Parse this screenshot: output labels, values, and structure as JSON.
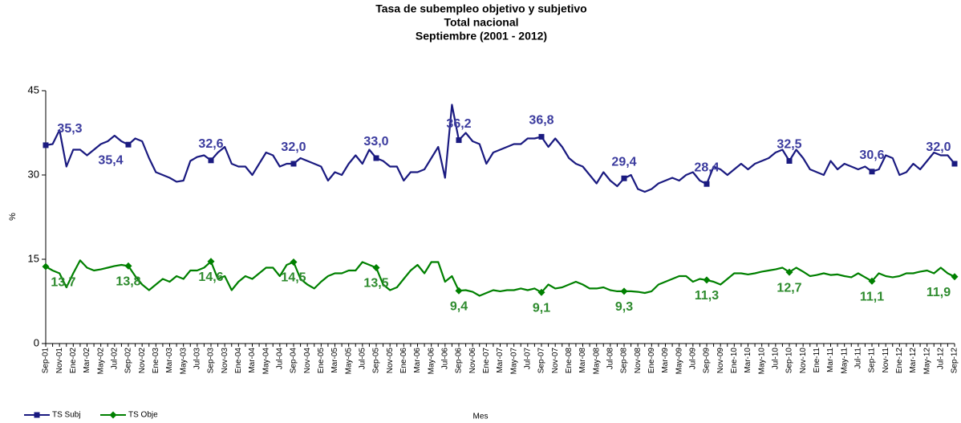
{
  "chart_data": {
    "type": "line",
    "title": "Tasa de subempleo objetivo y subjetivo",
    "subtitle": [
      "Total nacional",
      "Septiembre (2001 - 2012)"
    ],
    "x_label": "Mes",
    "y_label": "%",
    "categories": [
      "Sep-01",
      null,
      "Nov-01",
      null,
      "Ene-02",
      null,
      "Mar-02",
      null,
      "May-02",
      null,
      "Jul-02",
      null,
      "Sep-02",
      null,
      "Nov-02",
      null,
      "Ene-03",
      null,
      "Mar-03",
      null,
      "May-03",
      null,
      "Jul-03",
      null,
      "Sep-03",
      null,
      "Nov-03",
      null,
      "Ene-04",
      null,
      "Mar-04",
      null,
      "May-04",
      null,
      "Jul-04",
      null,
      "Sep-04",
      null,
      "Nov-04",
      null,
      "Ene-05",
      null,
      "Mar-05",
      null,
      "May-05",
      null,
      "Jul-05",
      null,
      "Sep-05",
      null,
      "Nov-05",
      null,
      "Ene-06",
      null,
      "Mar-06",
      null,
      "May-06",
      null,
      "Jul-06",
      null,
      "Sep-06",
      null,
      "Nov-06",
      null,
      "Ene-07",
      null,
      "Mar-07",
      null,
      "May-07",
      null,
      "Jul-07",
      null,
      "Sep-07",
      null,
      "Nov-07",
      null,
      "Ene-08",
      null,
      "Mar-08",
      null,
      "May-08",
      null,
      "Jul-08",
      null,
      "Sep-08",
      null,
      "Nov-08",
      null,
      "Ene-09",
      null,
      "Mar-09",
      null,
      "May-09",
      null,
      "Jul-09",
      null,
      "Sep-09",
      null,
      "Nov-09",
      null,
      "Ene-10",
      null,
      "Mar-10",
      null,
      "May-10",
      null,
      "Jul-10",
      null,
      "Sep-10",
      null,
      "Nov-10",
      null,
      "Ene-11",
      null,
      "Mar-11",
      null,
      "May-11",
      null,
      "Jul-11",
      null,
      "Sep-11",
      null,
      "Nov-11",
      null,
      "Ene-12",
      null,
      "Mar-12",
      null,
      "May-12",
      null,
      "Jul-12",
      null,
      "Sep-12"
    ],
    "series": [
      {
        "name": "TS Subj",
        "color": "#1a1a80",
        "label_color": "#3b3b9e",
        "marker": "square",
        "values": [
          35.3,
          35.5,
          38,
          31.5,
          34.5,
          34.5,
          33.5,
          34.5,
          35.5,
          36,
          37,
          36,
          35.4,
          36.5,
          36,
          33,
          30.5,
          30,
          29.5,
          28.8,
          29,
          32.5,
          33.2,
          33.5,
          32.6,
          34,
          35,
          32,
          31.5,
          31.5,
          30,
          32,
          34,
          33.5,
          31.5,
          32,
          32.0,
          33,
          32.5,
          32,
          31.5,
          29,
          30.5,
          30,
          32,
          33.5,
          32,
          34.5,
          33.0,
          32.5,
          31.5,
          31.5,
          29,
          30.5,
          30.5,
          31,
          33,
          35,
          29.5,
          42.5,
          36.2,
          37.5,
          36,
          35.5,
          32,
          34,
          34.5,
          35,
          35.5,
          35.5,
          36.5,
          36.5,
          36.8,
          35,
          36.5,
          35,
          33,
          32,
          31.5,
          30,
          28.5,
          30.5,
          29,
          28,
          29.4,
          30,
          27.5,
          27,
          27.5,
          28.5,
          29,
          29.5,
          29,
          30,
          30.5,
          29,
          28.4,
          31.5,
          31,
          30,
          31,
          32,
          31,
          32,
          32.5,
          33,
          34,
          34.5,
          32.5,
          34.5,
          33,
          31,
          30.5,
          30,
          32.5,
          31,
          32,
          31.5,
          31,
          31.5,
          30.6,
          31,
          33.5,
          33,
          30,
          30.5,
          32,
          31,
          32.5,
          34,
          33.5,
          33.5,
          32.0
        ],
        "value_labels": [
          "35,3",
          null,
          null,
          null,
          null,
          null,
          null,
          null,
          null,
          null,
          null,
          null,
          "35,4",
          null,
          null,
          null,
          null,
          null,
          null,
          null,
          null,
          null,
          null,
          null,
          "32,6",
          null,
          null,
          null,
          null,
          null,
          null,
          null,
          null,
          null,
          null,
          null,
          "32,0",
          null,
          null,
          null,
          null,
          null,
          null,
          null,
          null,
          null,
          null,
          null,
          "33,0",
          null,
          null,
          null,
          null,
          null,
          null,
          null,
          null,
          null,
          null,
          null,
          "36,2",
          null,
          null,
          null,
          null,
          null,
          null,
          null,
          null,
          null,
          null,
          null,
          "36,8",
          null,
          null,
          null,
          null,
          null,
          null,
          null,
          null,
          null,
          null,
          null,
          "29,4",
          null,
          null,
          null,
          null,
          null,
          null,
          null,
          null,
          null,
          null,
          null,
          "28,4",
          null,
          null,
          null,
          null,
          null,
          null,
          null,
          null,
          null,
          null,
          null,
          "32,5",
          null,
          null,
          null,
          null,
          null,
          null,
          null,
          null,
          null,
          null,
          null,
          "30,6",
          null,
          null,
          null,
          null,
          null,
          null,
          null,
          null,
          null,
          null,
          null,
          "32,0"
        ]
      },
      {
        "name": "TS Obje",
        "color": "#008000",
        "label_color": "#2e8b2e",
        "marker": "diamond",
        "values": [
          13.7,
          13,
          12.5,
          10,
          12.5,
          14.8,
          13.5,
          13,
          13.2,
          13.5,
          13.8,
          14,
          13.8,
          12,
          10.5,
          9.5,
          10.5,
          11.5,
          11,
          12,
          11.5,
          13,
          13,
          13.5,
          14.6,
          11.5,
          12,
          9.5,
          11,
          12,
          11.5,
          12.5,
          13.5,
          13.5,
          12,
          14,
          14.5,
          11.5,
          10.5,
          9.8,
          11,
          12,
          12.5,
          12.5,
          13,
          13,
          14.5,
          14,
          13.5,
          10.5,
          9.5,
          10,
          11.5,
          13,
          14,
          12.5,
          14.5,
          14.5,
          11,
          12,
          9.4,
          9.5,
          9.2,
          8.5,
          9,
          9.5,
          9.3,
          9.5,
          9.5,
          9.8,
          9.5,
          9.8,
          9.1,
          10.5,
          9.8,
          10,
          10.5,
          11,
          10.5,
          9.8,
          9.8,
          10,
          9.5,
          9.3,
          9.3,
          9.3,
          9.2,
          9,
          9.3,
          10.5,
          11,
          11.5,
          12,
          12,
          11,
          11.5,
          11.3,
          11,
          10.5,
          11.5,
          12.5,
          12.5,
          12.3,
          12.5,
          12.8,
          13,
          13.2,
          13.5,
          12.7,
          13.5,
          12.8,
          12,
          12.2,
          12.5,
          12.2,
          12.3,
          12,
          11.8,
          12.5,
          11.8,
          11.1,
          12.5,
          12,
          11.8,
          12,
          12.5,
          12.5,
          12.8,
          13,
          12.5,
          13.5,
          12.5,
          11.9
        ],
        "value_labels": [
          "13,7",
          null,
          null,
          null,
          null,
          null,
          null,
          null,
          null,
          null,
          null,
          null,
          "13,8",
          null,
          null,
          null,
          null,
          null,
          null,
          null,
          null,
          null,
          null,
          null,
          "14,6",
          null,
          null,
          null,
          null,
          null,
          null,
          null,
          null,
          null,
          null,
          null,
          "14,5",
          null,
          null,
          null,
          null,
          null,
          null,
          null,
          null,
          null,
          null,
          null,
          "13,5",
          null,
          null,
          null,
          null,
          null,
          null,
          null,
          null,
          null,
          null,
          null,
          "9,4",
          null,
          null,
          null,
          null,
          null,
          null,
          null,
          null,
          null,
          null,
          null,
          "9,1",
          null,
          null,
          null,
          null,
          null,
          null,
          null,
          null,
          null,
          null,
          null,
          "9,3",
          null,
          null,
          null,
          null,
          null,
          null,
          null,
          null,
          null,
          null,
          null,
          "11,3",
          null,
          null,
          null,
          null,
          null,
          null,
          null,
          null,
          null,
          null,
          null,
          "12,7",
          null,
          null,
          null,
          null,
          null,
          null,
          null,
          null,
          null,
          null,
          null,
          "11,1",
          null,
          null,
          null,
          null,
          null,
          null,
          null,
          null,
          null,
          null,
          null,
          "11,9"
        ]
      }
    ],
    "ylim": [
      0,
      45
    ],
    "yticks": [
      0,
      15,
      30,
      45
    ],
    "grid": false,
    "legend": "bottom-left"
  }
}
